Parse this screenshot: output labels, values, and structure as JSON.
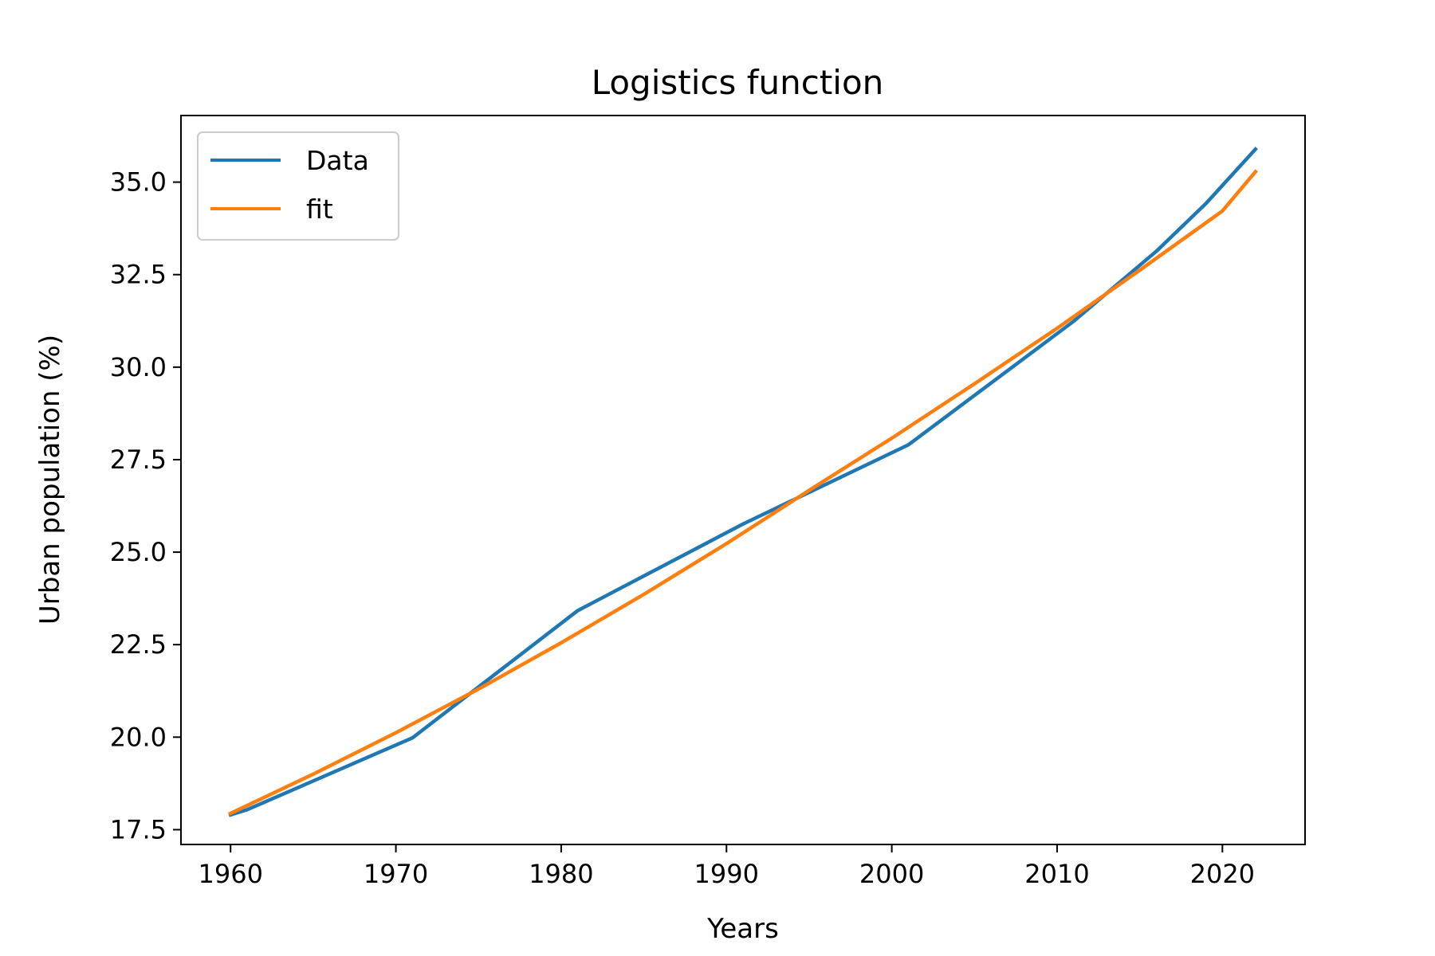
{
  "chart_data": {
    "type": "line",
    "title": "Logistics function",
    "xlabel": "Years",
    "ylabel": "Urban population (%)",
    "xlim": [
      1957,
      2025
    ],
    "ylim": [
      17.1,
      36.8
    ],
    "xticks": [
      1960,
      1970,
      1980,
      1990,
      2000,
      2010,
      2020
    ],
    "yticks": [
      17.5,
      20.0,
      22.5,
      25.0,
      27.5,
      30.0,
      32.5,
      35.0
    ],
    "grid": false,
    "legend_position": "top-left",
    "series": [
      {
        "name": "Data",
        "color": "#1f77b4",
        "x": [
          1960,
          1961,
          1971,
          1981,
          1991,
          2001,
          2011,
          2016,
          2019,
          2022
        ],
        "y": [
          17.9,
          18.04,
          19.98,
          23.42,
          25.76,
          27.9,
          31.24,
          33.13,
          34.42,
          35.89
        ]
      },
      {
        "name": "fit",
        "color": "#ff7f0e",
        "x": [
          1960,
          1965,
          1970,
          1975,
          1980,
          1985,
          1990,
          1995,
          2000,
          2005,
          2010,
          2015,
          2020,
          2022
        ],
        "y": [
          17.94,
          19.0,
          20.12,
          21.3,
          22.55,
          23.86,
          25.23,
          26.67,
          28.08,
          29.55,
          31.05,
          32.62,
          34.22,
          35.28
        ]
      }
    ]
  }
}
